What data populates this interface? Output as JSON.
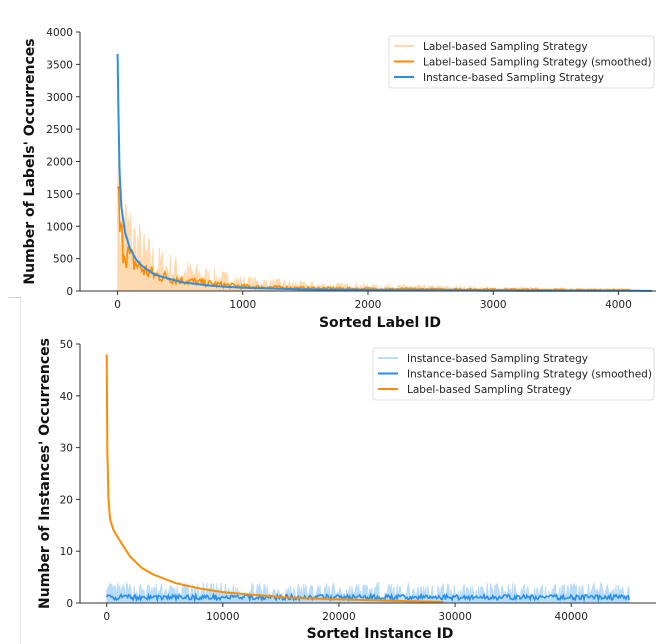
{
  "chart_data": [
    {
      "type": "line",
      "xlabel": "Sorted Label ID",
      "ylabel": "Number of Labels' Occurrences",
      "xlim": [
        -300,
        4300
      ],
      "ylim": [
        0,
        4000
      ],
      "xticks": [
        0,
        1000,
        2000,
        3000,
        4000
      ],
      "xtick_labels": [
        "0",
        "1000",
        "2000",
        "3000",
        "4000"
      ],
      "yticks": [
        0,
        500,
        1000,
        1500,
        2000,
        2500,
        3000,
        3500,
        4000
      ],
      "ytick_labels": [
        "0",
        "500",
        "1000",
        "1500",
        "2000",
        "2500",
        "3000",
        "3500",
        "4000"
      ],
      "legend_position": "top-right",
      "series": [
        {
          "name": "Label-based Sampling Strategy",
          "color": "#ffd9b0",
          "style": "raw-noisy",
          "x": [
            0,
            20,
            50,
            100,
            200,
            300,
            500,
            750,
            1000,
            1500,
            2000,
            3000,
            4100
          ],
          "y": [
            1600,
            1250,
            1100,
            900,
            600,
            450,
            320,
            220,
            150,
            90,
            70,
            40,
            25
          ]
        },
        {
          "name": "Label-based Sampling Strategy (smoothed)",
          "color": "#ff8c00",
          "style": "smoothed",
          "x": [
            0,
            20,
            50,
            100,
            200,
            300,
            500,
            750,
            1000,
            1500,
            2000,
            3000,
            4100
          ],
          "y": [
            1580,
            850,
            700,
            500,
            330,
            250,
            170,
            110,
            70,
            45,
            35,
            25,
            15
          ]
        },
        {
          "name": "Instance-based Sampling Strategy",
          "color": "#2a8fe8",
          "style": "line",
          "x": [
            0,
            5,
            15,
            30,
            60,
            100,
            150,
            200,
            300,
            500,
            750,
            1000,
            1500,
            2000,
            3000,
            4270
          ],
          "y": [
            3660,
            3000,
            1900,
            1300,
            900,
            650,
            480,
            380,
            250,
            140,
            80,
            50,
            25,
            15,
            6,
            2
          ]
        }
      ]
    },
    {
      "type": "line",
      "xlabel": "Sorted Instance ID",
      "ylabel": "Number of Instances' Occurrences",
      "xlim": [
        -2300,
        47300
      ],
      "ylim": [
        0,
        50
      ],
      "xticks": [
        0,
        10000,
        20000,
        30000,
        40000
      ],
      "xtick_labels": [
        "0",
        "10000",
        "20000",
        "30000",
        "40000"
      ],
      "yticks": [
        0,
        10,
        20,
        30,
        40,
        50
      ],
      "ytick_labels": [
        "0",
        "10",
        "20",
        "30",
        "40",
        "50"
      ],
      "legend_position": "top-right",
      "series": [
        {
          "name": "Instance-based Sampling Strategy",
          "color": "#b9dcfb",
          "style": "raw-noisy",
          "x": [
            0,
            45000
          ],
          "y": [
            2.4,
            2.4
          ]
        },
        {
          "name": "Instance-based Sampling Strategy (smoothed)",
          "color": "#2a8fe8",
          "style": "smoothed",
          "x": [
            0,
            45000
          ],
          "y": [
            1.1,
            1.1
          ]
        },
        {
          "name": "Label-based Sampling Strategy",
          "color": "#ff8c00",
          "style": "line",
          "x": [
            0,
            50,
            150,
            300,
            600,
            1000,
            2000,
            3000,
            4000,
            6000,
            8000,
            10000,
            13000,
            16000,
            20000,
            25000,
            29000
          ],
          "y": [
            48,
            30,
            20,
            16,
            14,
            12.5,
            9,
            6.8,
            5.5,
            3.8,
            2.8,
            2.1,
            1.5,
            1.0,
            0.7,
            0.4,
            0.2
          ]
        }
      ]
    }
  ]
}
